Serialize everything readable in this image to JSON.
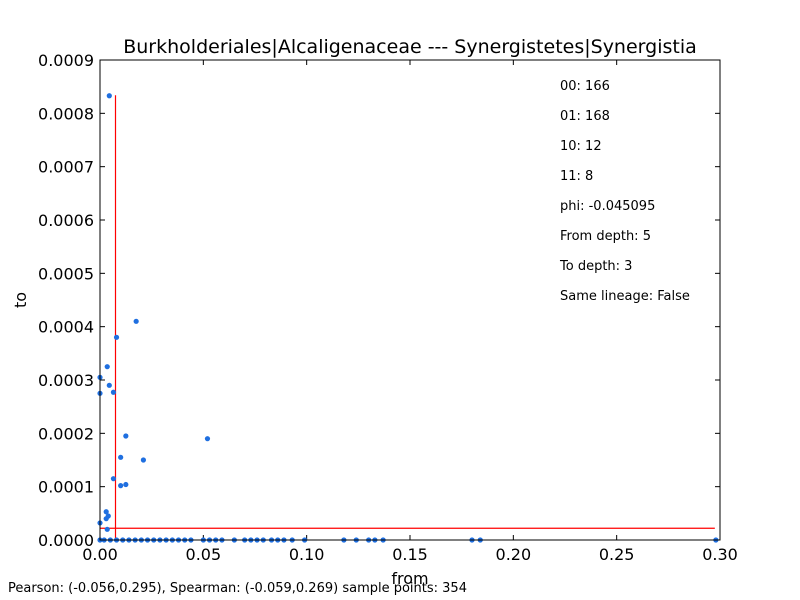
{
  "chart_data": {
    "type": "scatter",
    "title": "Burkholderiales|Alcaligenaceae --- Synergistetes|Synergistia",
    "xlabel": "from",
    "ylabel": "to",
    "xlim": [
      0,
      0.3
    ],
    "ylim": [
      0,
      0.0009
    ],
    "x_ticks": [
      "0.00",
      "0.05",
      "0.10",
      "0.15",
      "0.20",
      "0.25",
      "0.30"
    ],
    "y_ticks": [
      "0.0000",
      "0.0001",
      "0.0002",
      "0.0003",
      "0.0004",
      "0.0005",
      "0.0006",
      "0.0007",
      "0.0008",
      "0.0009"
    ],
    "grid": false,
    "marker_color": "#1f6fe0",
    "threshold_color": "#ff0000",
    "thresholds": {
      "x": 0.0075,
      "y": 2.2e-05
    },
    "points": [
      [
        0.0045,
        0.000833
      ],
      [
        0.0175,
        0.00041
      ],
      [
        0.008,
        0.00038
      ],
      [
        0.0035,
        0.000325
      ],
      [
        0.0,
        0.000305
      ],
      [
        0.0045,
        0.00029
      ],
      [
        0.0,
        0.000275
      ],
      [
        0.0065,
        0.000277
      ],
      [
        0.0125,
        0.000195
      ],
      [
        0.052,
        0.00019
      ],
      [
        0.01,
        0.000155
      ],
      [
        0.021,
        0.00015
      ],
      [
        0.0065,
        0.000115
      ],
      [
        0.01,
        0.000102
      ],
      [
        0.0125,
        0.000104
      ],
      [
        0.003,
        5.3e-05
      ],
      [
        0.004,
        4.5e-05
      ],
      [
        0.003,
        4e-05
      ],
      [
        0.0,
        3.2e-05
      ],
      [
        0.0035,
        2e-05
      ],
      [
        0.0,
        0.0
      ],
      [
        0.002,
        0.0
      ],
      [
        0.005,
        0.0
      ],
      [
        0.008,
        0.0
      ],
      [
        0.011,
        0.0
      ],
      [
        0.014,
        0.0
      ],
      [
        0.017,
        0.0
      ],
      [
        0.02,
        0.0
      ],
      [
        0.023,
        0.0
      ],
      [
        0.026,
        0.0
      ],
      [
        0.029,
        0.0
      ],
      [
        0.032,
        0.0
      ],
      [
        0.035,
        0.0
      ],
      [
        0.038,
        0.0
      ],
      [
        0.041,
        0.0
      ],
      [
        0.044,
        0.0
      ],
      [
        0.05,
        0.0
      ],
      [
        0.053,
        0.0
      ],
      [
        0.056,
        0.0
      ],
      [
        0.059,
        0.0
      ],
      [
        0.065,
        0.0
      ],
      [
        0.07,
        0.0
      ],
      [
        0.073,
        0.0
      ],
      [
        0.076,
        0.0
      ],
      [
        0.079,
        0.0
      ],
      [
        0.083,
        0.0
      ],
      [
        0.086,
        0.0
      ],
      [
        0.089,
        0.0
      ],
      [
        0.093,
        0.0
      ],
      [
        0.099,
        0.0
      ],
      [
        0.118,
        0.0
      ],
      [
        0.124,
        0.0
      ],
      [
        0.13,
        0.0
      ],
      [
        0.133,
        0.0
      ],
      [
        0.137,
        0.0
      ],
      [
        0.18,
        0.0
      ],
      [
        0.184,
        0.0
      ],
      [
        0.298,
        0.0
      ]
    ],
    "annotations": [
      "00: 166",
      "01: 168",
      "10: 12",
      "11: 8",
      "phi: -0.045095",
      "From depth: 5",
      "To depth: 3",
      "Same lineage: False"
    ]
  },
  "footer": "Pearson: (-0.056,0.295), Spearman: (-0.059,0.269) sample points: 354"
}
